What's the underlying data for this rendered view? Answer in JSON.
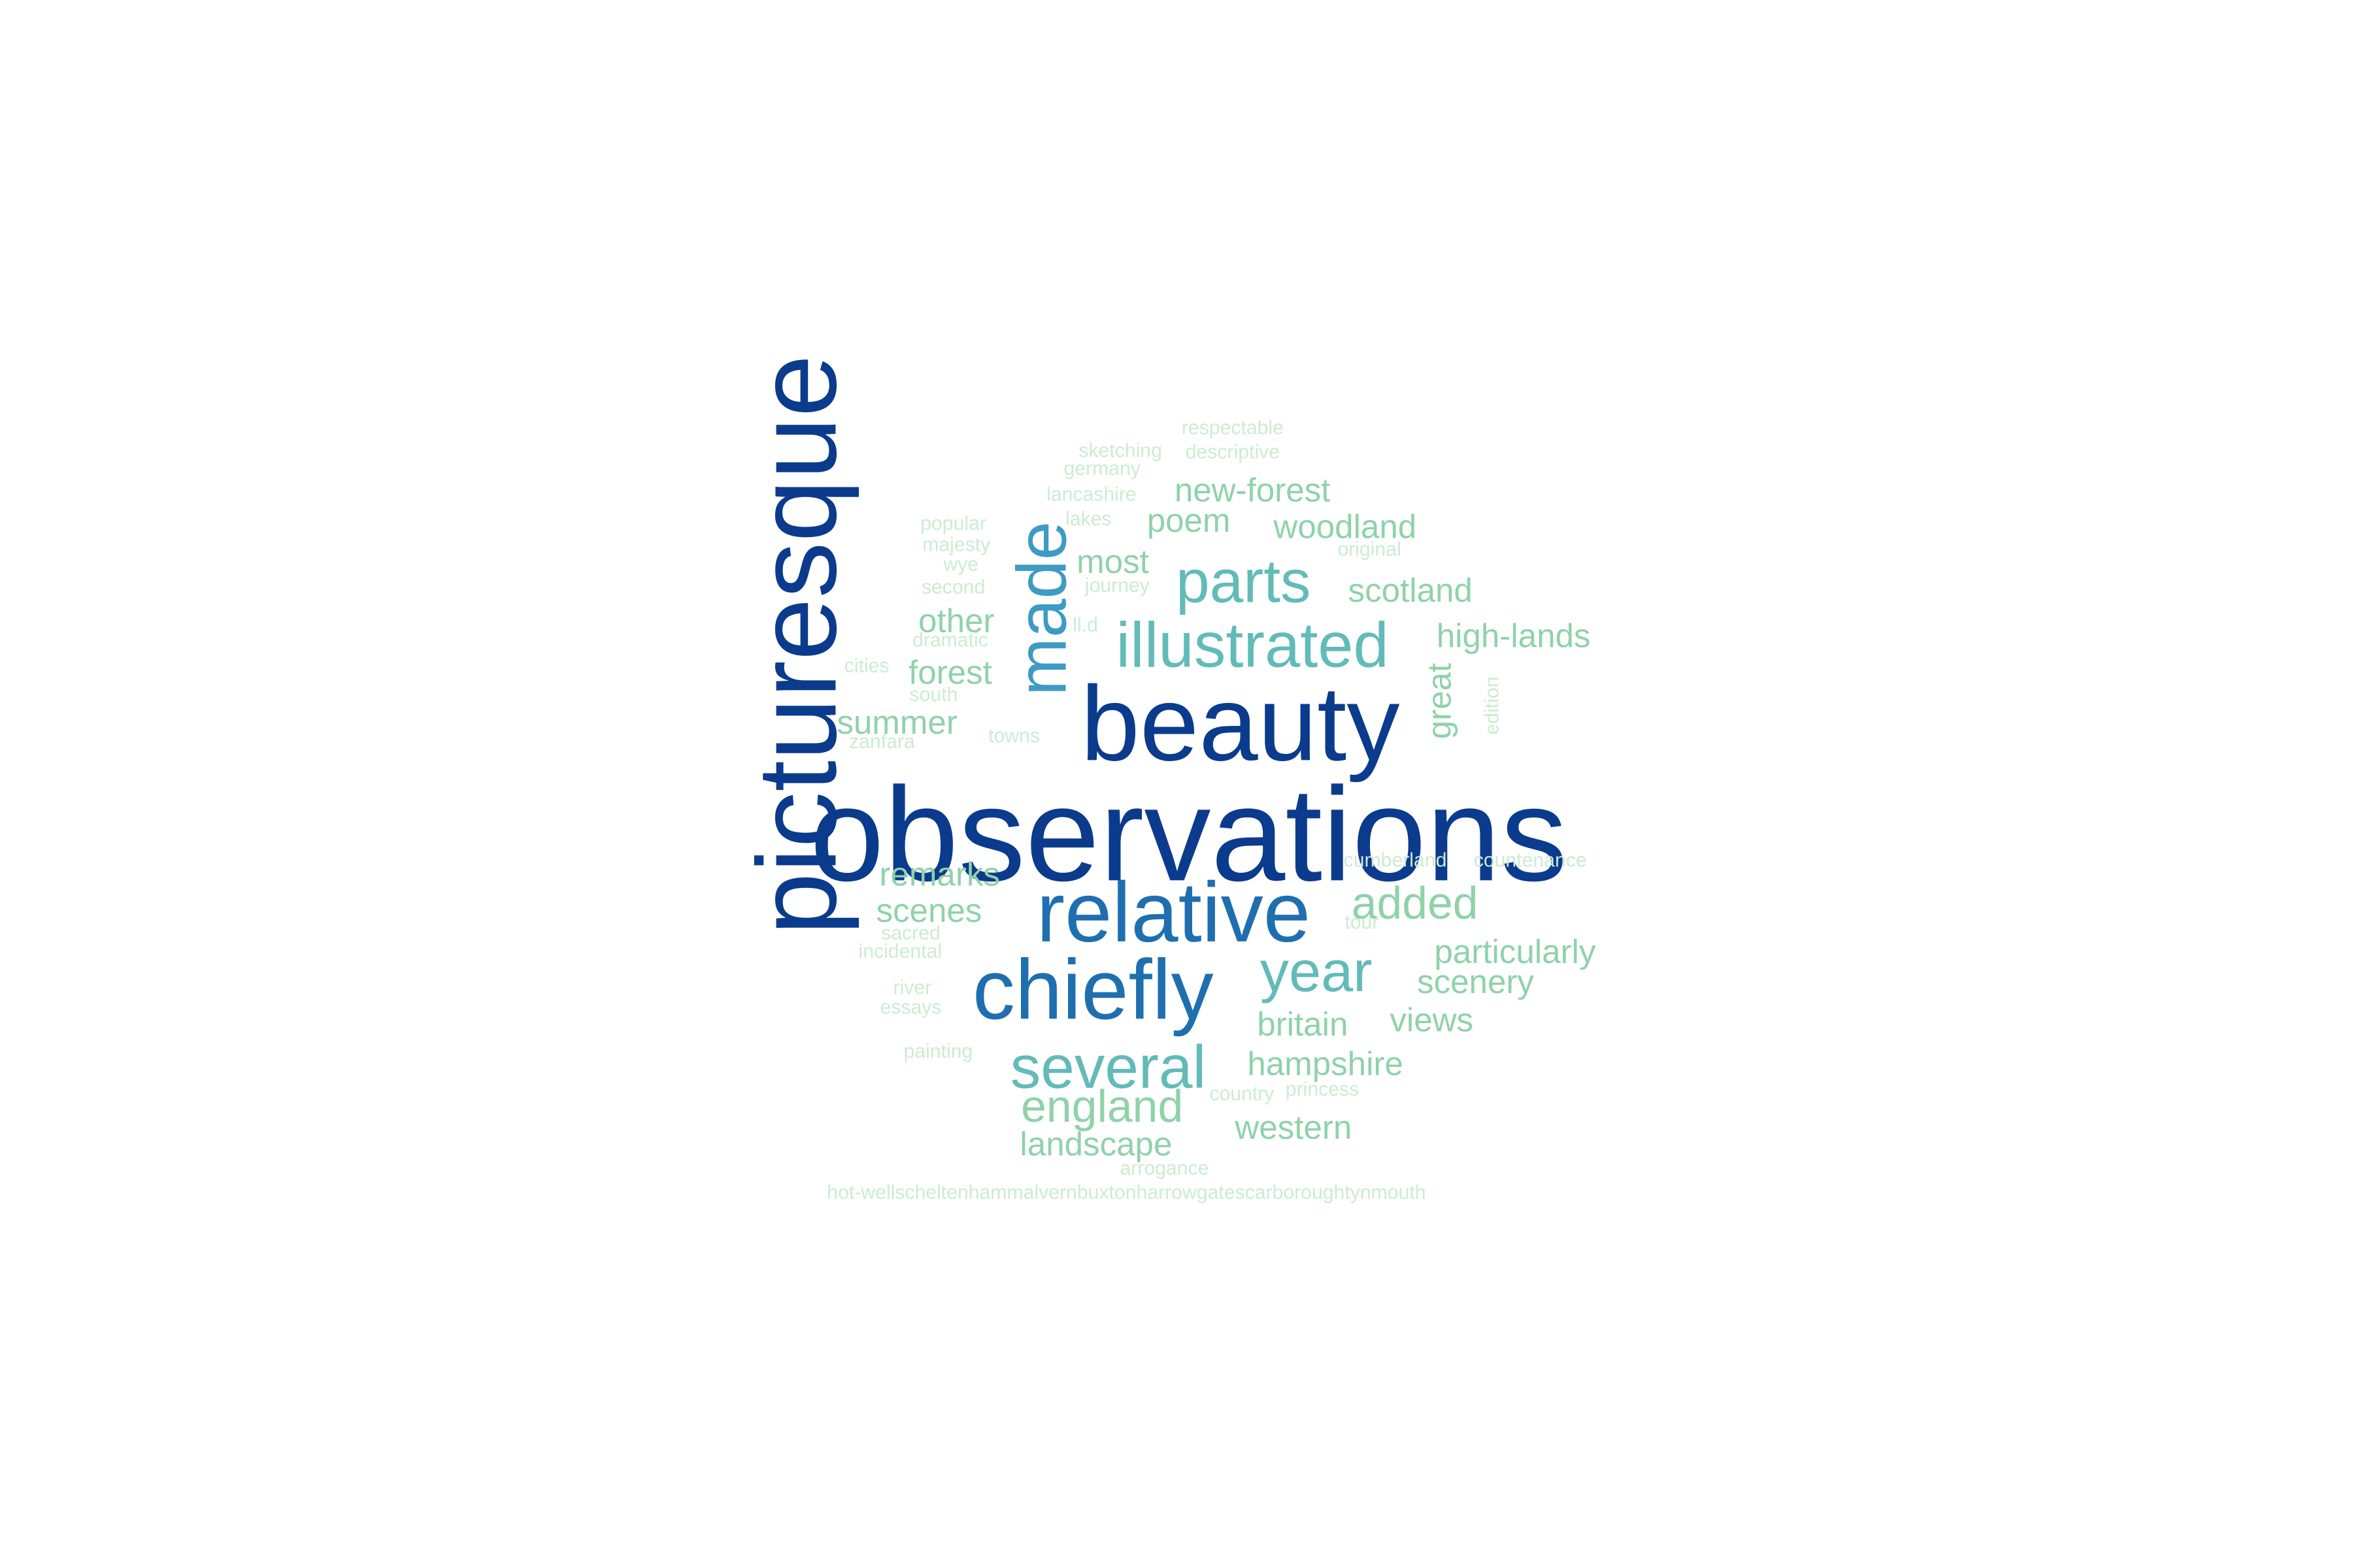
{
  "palette": {
    "c1": "#0b3b8c",
    "c2": "#1f6fb0",
    "c3": "#3d9bc4",
    "c4": "#62bbb8",
    "c5": "#8fd2a9",
    "c6": "#b2e2b9",
    "c7": "#cdebd3"
  },
  "words": [
    {
      "text": "observations",
      "color": "c1"
    },
    {
      "text": "picturesque",
      "color": "c1"
    },
    {
      "text": "beauty",
      "color": "c1"
    },
    {
      "text": "relative",
      "color": "c2"
    },
    {
      "text": "chiefly",
      "color": "c2"
    },
    {
      "text": "made",
      "color": "c3"
    },
    {
      "text": "illustrated",
      "color": "c4"
    },
    {
      "text": "parts",
      "color": "c4"
    },
    {
      "text": "several",
      "color": "c4"
    },
    {
      "text": "year",
      "color": "c4"
    },
    {
      "text": "england",
      "color": "c5"
    },
    {
      "text": "added",
      "color": "c5"
    },
    {
      "text": "new-forest",
      "color": "c5"
    },
    {
      "text": "woodland",
      "color": "c5"
    },
    {
      "text": "scotland",
      "color": "c5"
    },
    {
      "text": "most",
      "color": "c5"
    },
    {
      "text": "poem",
      "color": "c5"
    },
    {
      "text": "other",
      "color": "c5"
    },
    {
      "text": "forest",
      "color": "c5"
    },
    {
      "text": "summer",
      "color": "c5"
    },
    {
      "text": "high-lands",
      "color": "c5"
    },
    {
      "text": "great",
      "color": "c5"
    },
    {
      "text": "remarks",
      "color": "c5"
    },
    {
      "text": "scenes",
      "color": "c5"
    },
    {
      "text": "particularly",
      "color": "c5"
    },
    {
      "text": "scenery",
      "color": "c5"
    },
    {
      "text": "britain",
      "color": "c5"
    },
    {
      "text": "views",
      "color": "c5"
    },
    {
      "text": "hampshire",
      "color": "c5"
    },
    {
      "text": "landscape",
      "color": "c5"
    },
    {
      "text": "western",
      "color": "c5"
    },
    {
      "text": "respectable",
      "color": "c7"
    },
    {
      "text": "sketching",
      "color": "c7"
    },
    {
      "text": "descriptive",
      "color": "c7"
    },
    {
      "text": "germany",
      "color": "c7"
    },
    {
      "text": "lancashire",
      "color": "c7"
    },
    {
      "text": "lakes",
      "color": "c7"
    },
    {
      "text": "popular",
      "color": "c7"
    },
    {
      "text": "majesty",
      "color": "c7"
    },
    {
      "text": "original",
      "color": "c7"
    },
    {
      "text": "wye",
      "color": "c7"
    },
    {
      "text": "journey",
      "color": "c7"
    },
    {
      "text": "second",
      "color": "c7"
    },
    {
      "text": "ll.d",
      "color": "c7"
    },
    {
      "text": "dramatic",
      "color": "c7"
    },
    {
      "text": "cities",
      "color": "c7"
    },
    {
      "text": "south",
      "color": "c7"
    },
    {
      "text": "zanfara",
      "color": "c7"
    },
    {
      "text": "towns",
      "color": "c7"
    },
    {
      "text": "edition",
      "color": "c7"
    },
    {
      "text": "cumberland",
      "color": "c7"
    },
    {
      "text": "countenance",
      "color": "c7"
    },
    {
      "text": "tour",
      "color": "c7"
    },
    {
      "text": "sacred",
      "color": "c7"
    },
    {
      "text": "incidental",
      "color": "c7"
    },
    {
      "text": "river",
      "color": "c7"
    },
    {
      "text": "essays",
      "color": "c7"
    },
    {
      "text": "painting",
      "color": "c7"
    },
    {
      "text": "country",
      "color": "c7"
    },
    {
      "text": "princess",
      "color": "c7"
    },
    {
      "text": "arrogance",
      "color": "c7"
    },
    {
      "text": "hot-wellscheltenhammalvernbuxtonharrowgatescarboroughtynmouth",
      "color": "c7"
    }
  ]
}
